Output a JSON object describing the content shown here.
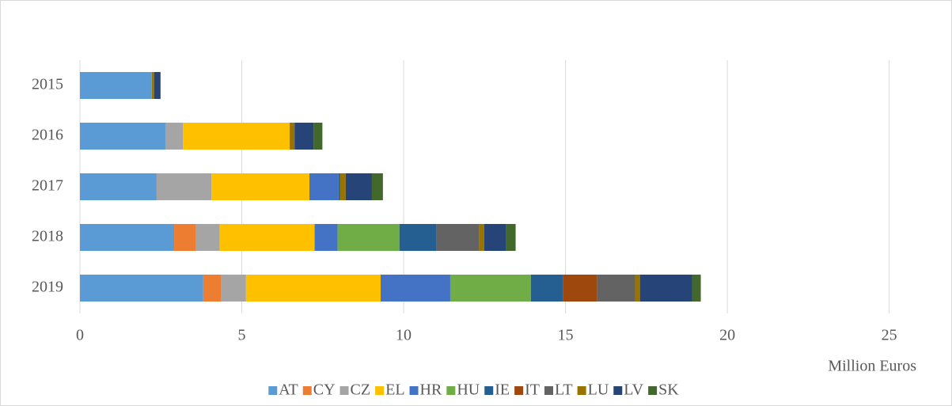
{
  "chart_data": {
    "type": "stacked-barh",
    "x_label": "Million Euros",
    "categories": [
      "2015",
      "2016",
      "2017",
      "2018",
      "2019"
    ],
    "series": [
      {
        "name": "AT",
        "color": "#5b9bd5",
        "values": [
          2.22,
          2.64,
          2.37,
          2.91,
          3.81
        ]
      },
      {
        "name": "CY",
        "color": "#ed7d31",
        "values": [
          0,
          0,
          0,
          0.68,
          0.56
        ]
      },
      {
        "name": "CZ",
        "color": "#a5a5a5",
        "values": [
          0,
          0.54,
          1.69,
          0.73,
          0.76
        ]
      },
      {
        "name": "EL",
        "color": "#ffc000",
        "values": [
          0,
          3.3,
          3.03,
          2.93,
          4.16
        ]
      },
      {
        "name": "HR",
        "color": "#4472c4",
        "values": [
          0,
          0,
          0.9,
          0.71,
          2.15
        ]
      },
      {
        "name": "HU",
        "color": "#70ad47",
        "values": [
          0,
          0,
          0,
          1.91,
          2.49
        ]
      },
      {
        "name": "IE",
        "color": "#255e91",
        "values": [
          0,
          0,
          0.05,
          1.15,
          1.0
        ]
      },
      {
        "name": "IT",
        "color": "#9e480e",
        "values": [
          0,
          0,
          0,
          0,
          1.05
        ]
      },
      {
        "name": "LT",
        "color": "#636363",
        "values": [
          0,
          0,
          0,
          1.32,
          1.17
        ]
      },
      {
        "name": "LU",
        "color": "#997300",
        "values": [
          0.07,
          0.15,
          0.17,
          0.15,
          0.15
        ]
      },
      {
        "name": "LV",
        "color": "#264478",
        "values": [
          0.2,
          0.59,
          0.81,
          0.68,
          1.61
        ]
      },
      {
        "name": "SK",
        "color": "#43682b",
        "values": [
          0,
          0.27,
          0.34,
          0.29,
          0.27
        ]
      }
    ],
    "xlim": [
      0,
      26.5
    ],
    "xticks": [
      0,
      5,
      10,
      15,
      20,
      25
    ],
    "grid": true,
    "legend": "bottom"
  }
}
